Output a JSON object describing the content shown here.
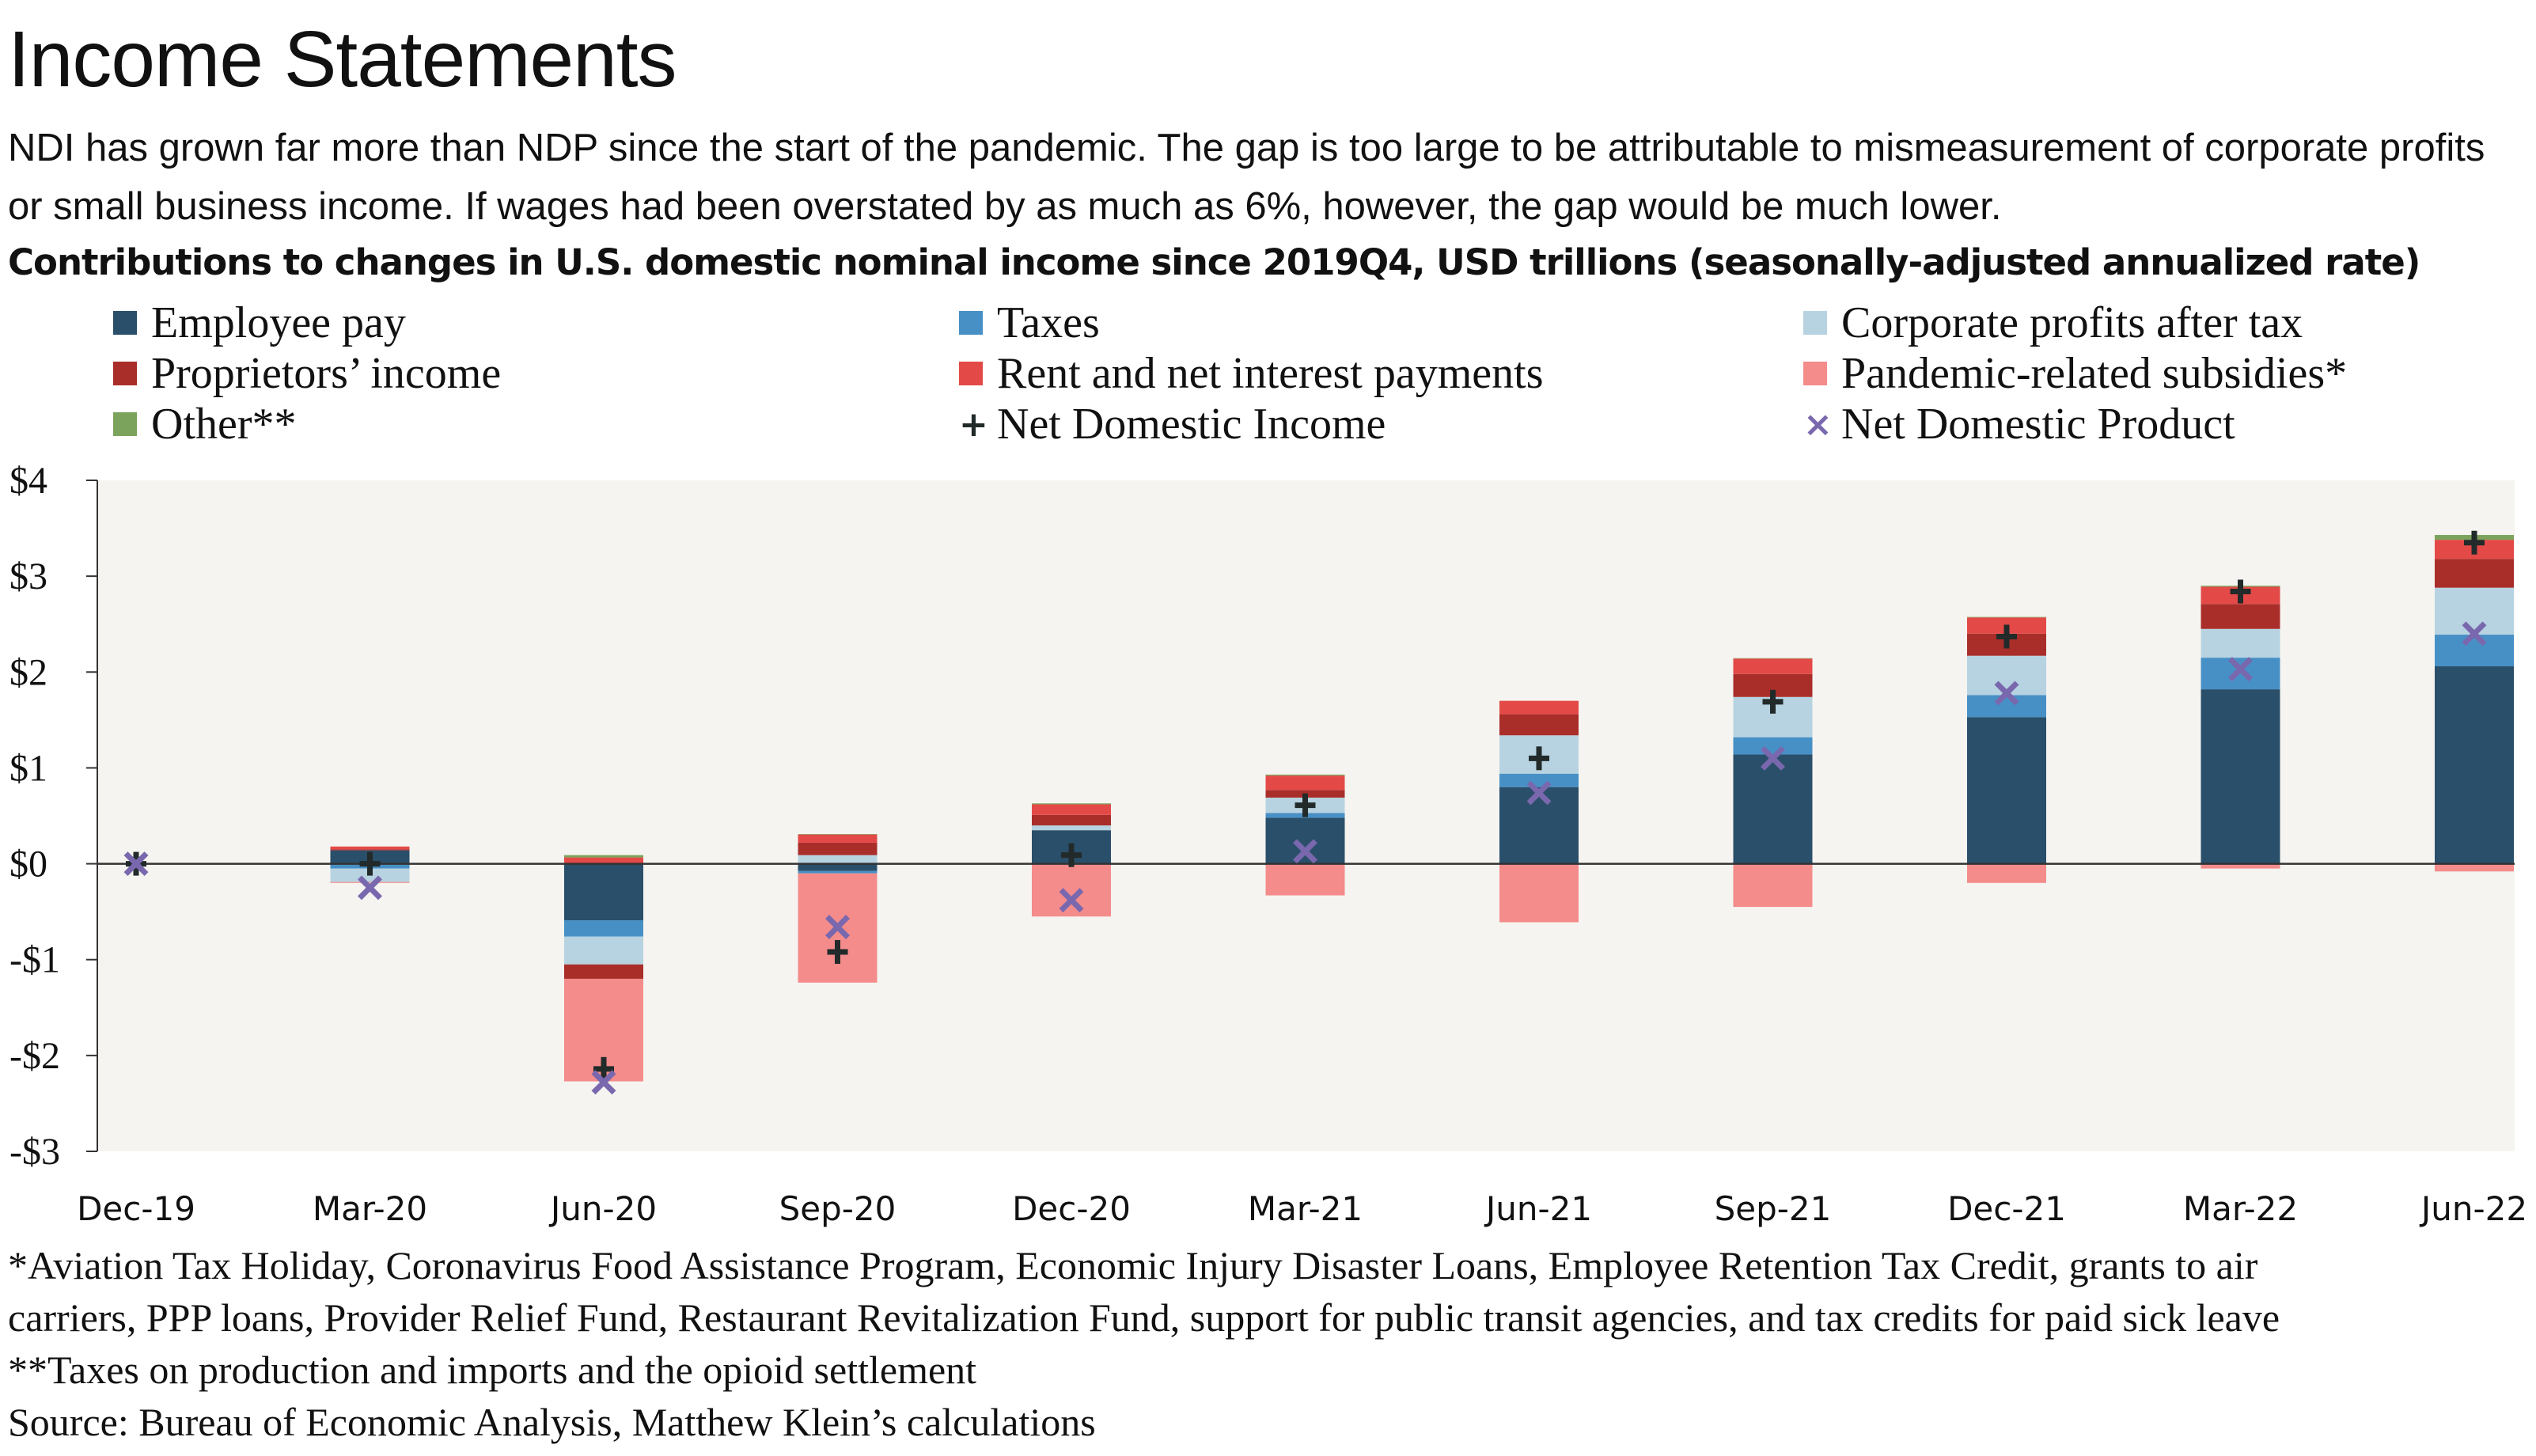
{
  "title": "Income Statements",
  "subtitle": "NDI has grown far more than NDP since the start of the pandemic. The gap is too large to be attributable to mismeasurement of corporate profits or small business income. If wages had been overstated by as much as 6%, however, the gap would be much lower.",
  "chart_data": {
    "type": "bar",
    "stacked": true,
    "title": "Contributions to changes in U.S. domestic nominal income since 2019Q4, USD trillions (seasonally-adjusted annualized rate)",
    "xlabel": "",
    "ylabel": "",
    "ylim": [
      -3,
      4
    ],
    "yticks": [
      4,
      3,
      2,
      1,
      0,
      -1,
      -2,
      -3
    ],
    "ytick_labels": [
      "$4",
      "$3",
      "$2",
      "$1",
      "$0",
      "-$1",
      "-$2",
      "-$3"
    ],
    "grid": false,
    "legend_position": "top",
    "categories": [
      "Dec-19",
      "Mar-20",
      "Jun-20",
      "Sep-20",
      "Dec-20",
      "Mar-21",
      "Jun-21",
      "Sep-21",
      "Dec-21",
      "Mar-22",
      "Jun-22"
    ],
    "series": [
      {
        "name": "Employee pay",
        "color": "#2a4f6a",
        "values": [
          0,
          0.14,
          -0.59,
          -0.075,
          0.35,
          0.48,
          0.8,
          1.14,
          1.53,
          1.82,
          2.06
        ]
      },
      {
        "name": "Taxes",
        "color": "#4790c6",
        "values": [
          0,
          -0.05,
          -0.17,
          -0.025,
          0,
          0.05,
          0.14,
          0.18,
          0.23,
          0.33,
          0.33
        ]
      },
      {
        "name": "Corporate profits after tax",
        "color": "#b7d3e1",
        "values": [
          0,
          -0.14,
          -0.29,
          0.09,
          0.05,
          0.16,
          0.4,
          0.42,
          0.41,
          0.3,
          0.49
        ]
      },
      {
        "name": "Proprietors’ income",
        "color": "#a92e2a",
        "values": [
          0,
          0.01,
          -0.15,
          0.13,
          0.11,
          0.08,
          0.22,
          0.24,
          0.23,
          0.26,
          0.3
        ]
      },
      {
        "name": "Rent and net interest payments",
        "color": "#e34a47",
        "values": [
          0,
          0.03,
          0.066,
          0.085,
          0.11,
          0.15,
          0.14,
          0.16,
          0.17,
          0.18,
          0.2
        ]
      },
      {
        "name": "Pandemic-related subsidies*",
        "color": "#f48c8b",
        "values": [
          0,
          -0.01,
          -1.07,
          -1.14,
          -0.55,
          -0.33,
          -0.61,
          -0.45,
          -0.2,
          -0.05,
          -0.08
        ]
      },
      {
        "name": "Other**",
        "color": "#7ba35c",
        "values": [
          0,
          0,
          0.024,
          0.005,
          0.01,
          0.01,
          0,
          0.005,
          0.005,
          0.01,
          0.05
        ]
      }
    ],
    "markers": [
      {
        "name": "Net Domestic Income",
        "symbol": "+",
        "color": "#222a2a",
        "values": [
          0,
          0,
          -2.14,
          -0.92,
          0.09,
          0.61,
          1.1,
          1.69,
          2.37,
          2.84,
          3.35
        ]
      },
      {
        "name": "Net Domestic Product",
        "symbol": "×",
        "color": "#7a68ae",
        "values": [
          0,
          -0.25,
          -2.28,
          -0.66,
          -0.38,
          0.13,
          0.74,
          1.1,
          1.78,
          2.03,
          2.4
        ]
      }
    ]
  },
  "footnotes": [
    "*Aviation Tax Holiday, Coronavirus Food Assistance Program, Economic Injury Disaster Loans, Employee Retention Tax Credit, grants to air",
    "carriers, PPP loans, Provider Relief Fund, Restaurant Revitalization Fund, support for public transit agencies, and tax credits for paid sick leave",
    "**Taxes on production and imports and the opioid settlement",
    "Source: Bureau of Economic Analysis, Matthew Klein’s calculations"
  ],
  "colors": {
    "plot_background": "#f5f4f0",
    "axis": "#333333"
  }
}
